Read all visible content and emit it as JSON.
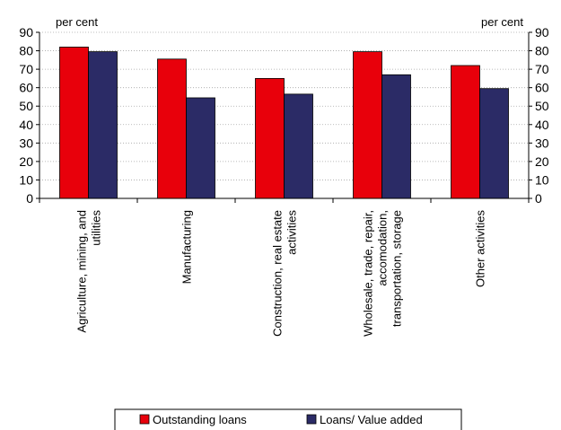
{
  "chart_data": {
    "type": "bar",
    "ylabel_left": "per cent",
    "ylabel_right": "per cent",
    "ylim": [
      0,
      90
    ],
    "yticks": [
      0,
      10,
      20,
      30,
      40,
      50,
      60,
      70,
      80,
      90
    ],
    "categories": [
      [
        "Agriculture, mining, and",
        "utilities"
      ],
      [
        "Manufacturing"
      ],
      [
        "Construction, real estate",
        "activities"
      ],
      [
        "Wholesale, trade, repair,",
        "accomodation,",
        "transportation, storage"
      ],
      [
        "Other activities"
      ]
    ],
    "series": [
      {
        "name": "Outstanding loans",
        "color": "#e8000b",
        "values": [
          82,
          75.5,
          65,
          79.5,
          72
        ]
      },
      {
        "name": "Loans/ Value added",
        "color": "#2b2b66",
        "values": [
          79.5,
          54.5,
          56.5,
          67,
          59.5
        ]
      }
    ],
    "grid": true,
    "legend": "bottom"
  }
}
